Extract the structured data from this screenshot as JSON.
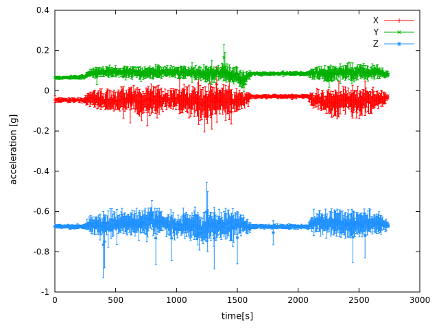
{
  "chart_data": {
    "type": "scatter",
    "style": "errorbars",
    "title": "",
    "xlabel": "time[s]",
    "ylabel": "acceleration [g]",
    "xlim": [
      0,
      3000
    ],
    "ylim": [
      -1,
      0.4
    ],
    "xticks": [
      0,
      500,
      1000,
      1500,
      2000,
      2500,
      3000
    ],
    "xtick_labels": [
      "0",
      "500",
      "1000",
      "1500",
      "2000",
      "2500",
      "3000"
    ],
    "yticks": [
      -1,
      -0.8,
      -0.6,
      -0.4,
      -0.2,
      0,
      0.2,
      0.4
    ],
    "ytick_labels": [
      "-1",
      "-0.8",
      "-0.6",
      "-0.4",
      "-0.2",
      "0",
      "0.2",
      "0.4"
    ],
    "grid": false,
    "legend_position": "top-right",
    "axis_color": "#000000",
    "sample_step": 6,
    "series": [
      {
        "name": "X",
        "color": "#ff0000",
        "marker": "plus",
        "envelope": [
          [
            0,
            -0.045,
            0.012
          ],
          [
            240,
            -0.048,
            0.012
          ],
          [
            265,
            -0.04,
            0.03
          ],
          [
            320,
            -0.035,
            0.045
          ],
          [
            420,
            -0.05,
            0.05
          ],
          [
            500,
            -0.055,
            0.065
          ],
          [
            620,
            -0.04,
            0.055
          ],
          [
            700,
            -0.06,
            0.075
          ],
          [
            800,
            -0.05,
            0.08
          ],
          [
            900,
            -0.04,
            0.05
          ],
          [
            1000,
            -0.045,
            0.055
          ],
          [
            1100,
            -0.05,
            0.07
          ],
          [
            1180,
            -0.06,
            0.09
          ],
          [
            1260,
            -0.065,
            0.095
          ],
          [
            1340,
            -0.05,
            0.08
          ],
          [
            1400,
            -0.045,
            0.07
          ],
          [
            1500,
            -0.055,
            0.06
          ],
          [
            1580,
            -0.04,
            0.03
          ],
          [
            1620,
            -0.028,
            0.01
          ],
          [
            2080,
            -0.028,
            0.01
          ],
          [
            2120,
            -0.04,
            0.05
          ],
          [
            2200,
            -0.05,
            0.06
          ],
          [
            2300,
            -0.06,
            0.07
          ],
          [
            2400,
            -0.045,
            0.055
          ],
          [
            2500,
            -0.055,
            0.07
          ],
          [
            2600,
            -0.05,
            0.06
          ],
          [
            2700,
            -0.04,
            0.04
          ],
          [
            2745,
            -0.03,
            0.015
          ]
        ],
        "outliers": [
          [
            620,
            -0.16,
            -0.03
          ],
          [
            760,
            -0.175,
            -0.04
          ],
          [
            1230,
            -0.205,
            -0.05
          ],
          [
            1290,
            -0.19,
            -0.04
          ],
          [
            1330,
            -0.06,
            0.12
          ],
          [
            1450,
            -0.165,
            -0.04
          ],
          [
            2320,
            -0.14,
            -0.03
          ],
          [
            2480,
            -0.135,
            -0.02
          ]
        ]
      },
      {
        "name": "Y",
        "color": "#00b000",
        "marker": "cross",
        "envelope": [
          [
            0,
            0.065,
            0.008
          ],
          [
            240,
            0.068,
            0.01
          ],
          [
            265,
            0.08,
            0.02
          ],
          [
            320,
            0.09,
            0.025
          ],
          [
            500,
            0.095,
            0.03
          ],
          [
            700,
            0.09,
            0.035
          ],
          [
            900,
            0.095,
            0.03
          ],
          [
            1100,
            0.09,
            0.035
          ],
          [
            1250,
            0.085,
            0.04
          ],
          [
            1400,
            0.09,
            0.04
          ],
          [
            1500,
            0.07,
            0.045
          ],
          [
            1560,
            0.05,
            0.04
          ],
          [
            1600,
            0.08,
            0.015
          ],
          [
            1620,
            0.085,
            0.01
          ],
          [
            2080,
            0.085,
            0.01
          ],
          [
            2120,
            0.09,
            0.03
          ],
          [
            2250,
            0.08,
            0.045
          ],
          [
            2350,
            0.095,
            0.035
          ],
          [
            2450,
            0.085,
            0.045
          ],
          [
            2550,
            0.09,
            0.04
          ],
          [
            2650,
            0.095,
            0.035
          ],
          [
            2745,
            0.08,
            0.012
          ]
        ],
        "outliers": [
          [
            345,
            0.03,
            0.105
          ],
          [
            1390,
            0.1,
            0.23
          ],
          [
            1398,
            0.05,
            0.19
          ],
          [
            1555,
            -0.005,
            0.07
          ],
          [
            2255,
            0.015,
            0.12
          ]
        ]
      },
      {
        "name": "Z",
        "color": "#1e90ff",
        "marker": "star",
        "envelope": [
          [
            0,
            -0.675,
            0.01
          ],
          [
            240,
            -0.675,
            0.012
          ],
          [
            265,
            -0.67,
            0.03
          ],
          [
            320,
            -0.66,
            0.05
          ],
          [
            400,
            -0.67,
            0.06
          ],
          [
            500,
            -0.66,
            0.06
          ],
          [
            600,
            -0.655,
            0.07
          ],
          [
            700,
            -0.66,
            0.075
          ],
          [
            800,
            -0.645,
            0.08
          ],
          [
            900,
            -0.66,
            0.06
          ],
          [
            1000,
            -0.67,
            0.06
          ],
          [
            1100,
            -0.675,
            0.07
          ],
          [
            1200,
            -0.68,
            0.09
          ],
          [
            1300,
            -0.67,
            0.09
          ],
          [
            1400,
            -0.665,
            0.075
          ],
          [
            1500,
            -0.67,
            0.07
          ],
          [
            1580,
            -0.672,
            0.04
          ],
          [
            1620,
            -0.675,
            0.012
          ],
          [
            2080,
            -0.675,
            0.012
          ],
          [
            2120,
            -0.665,
            0.05
          ],
          [
            2200,
            -0.655,
            0.06
          ],
          [
            2300,
            -0.66,
            0.07
          ],
          [
            2400,
            -0.665,
            0.075
          ],
          [
            2500,
            -0.66,
            0.065
          ],
          [
            2600,
            -0.655,
            0.06
          ],
          [
            2700,
            -0.665,
            0.05
          ],
          [
            2745,
            -0.67,
            0.015
          ]
        ],
        "outliers": [
          [
            398,
            -0.93,
            -0.6
          ],
          [
            408,
            -0.88,
            -0.62
          ],
          [
            830,
            -0.865,
            -0.6
          ],
          [
            960,
            -0.845,
            -0.62
          ],
          [
            1248,
            -0.75,
            -0.455
          ],
          [
            1256,
            -0.8,
            -0.5
          ],
          [
            1310,
            -0.885,
            -0.58
          ],
          [
            1500,
            -0.86,
            -0.6
          ],
          [
            1795,
            -0.765,
            -0.645
          ],
          [
            2450,
            -0.855,
            -0.6
          ],
          [
            2550,
            -0.83,
            -0.61
          ]
        ]
      }
    ]
  }
}
